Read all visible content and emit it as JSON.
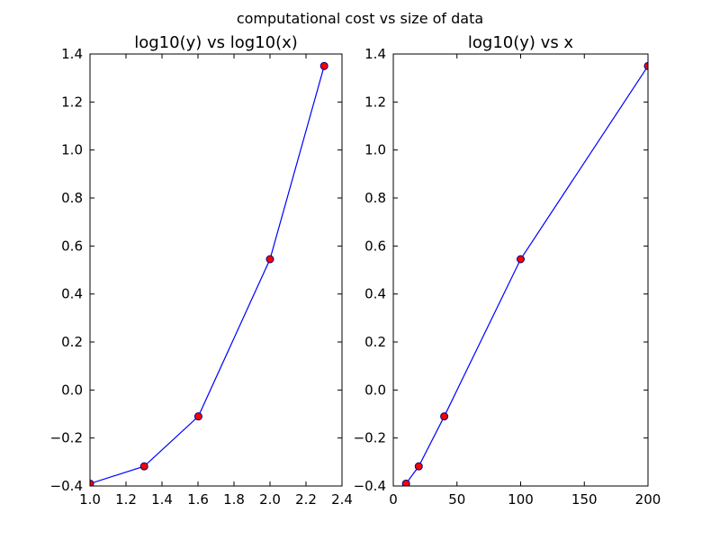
{
  "figure": {
    "suptitle": "computational cost vs size of data"
  },
  "chart_data": [
    {
      "type": "line",
      "title": "log10(y) vs log10(x)",
      "xlabel": "",
      "ylabel": "",
      "x": [
        1.0,
        1.301,
        1.602,
        2.0,
        2.301
      ],
      "y": [
        -0.39,
        -0.318,
        -0.11,
        0.545,
        1.35
      ],
      "xlim": [
        1.0,
        2.4
      ],
      "ylim": [
        -0.4,
        1.4
      ],
      "xticks": [
        1.0,
        1.2,
        1.4,
        1.6,
        1.8,
        2.0,
        2.2,
        2.4
      ],
      "xtick_labels": [
        "1.0",
        "1.2",
        "1.4",
        "1.6",
        "1.8",
        "2.0",
        "2.2",
        "2.4"
      ],
      "yticks": [
        -0.4,
        -0.2,
        0.0,
        0.2,
        0.4,
        0.6,
        0.8,
        1.0,
        1.2,
        1.4
      ],
      "ytick_labels": [
        "−0.4",
        "−0.2",
        "0.0",
        "0.2",
        "0.4",
        "0.6",
        "0.8",
        "1.0",
        "1.2",
        "1.4"
      ],
      "grid": false,
      "line_color": "#0000ff",
      "marker_color": "#ff0000"
    },
    {
      "type": "line",
      "title": "log10(y) vs x",
      "xlabel": "",
      "ylabel": "",
      "x": [
        10,
        20,
        40,
        100,
        200
      ],
      "y": [
        -0.39,
        -0.318,
        -0.11,
        0.545,
        1.35
      ],
      "xlim": [
        0,
        200
      ],
      "ylim": [
        -0.4,
        1.4
      ],
      "xticks": [
        0,
        50,
        100,
        150,
        200
      ],
      "xtick_labels": [
        "0",
        "50",
        "100",
        "150",
        "200"
      ],
      "yticks": [
        -0.4,
        -0.2,
        0.0,
        0.2,
        0.4,
        0.6,
        0.8,
        1.0,
        1.2,
        1.4
      ],
      "ytick_labels": [
        "−0.4",
        "−0.2",
        "0.0",
        "0.2",
        "0.4",
        "0.6",
        "0.8",
        "1.0",
        "1.2",
        "1.4"
      ],
      "grid": false,
      "line_color": "#0000ff",
      "marker_color": "#ff0000"
    }
  ]
}
